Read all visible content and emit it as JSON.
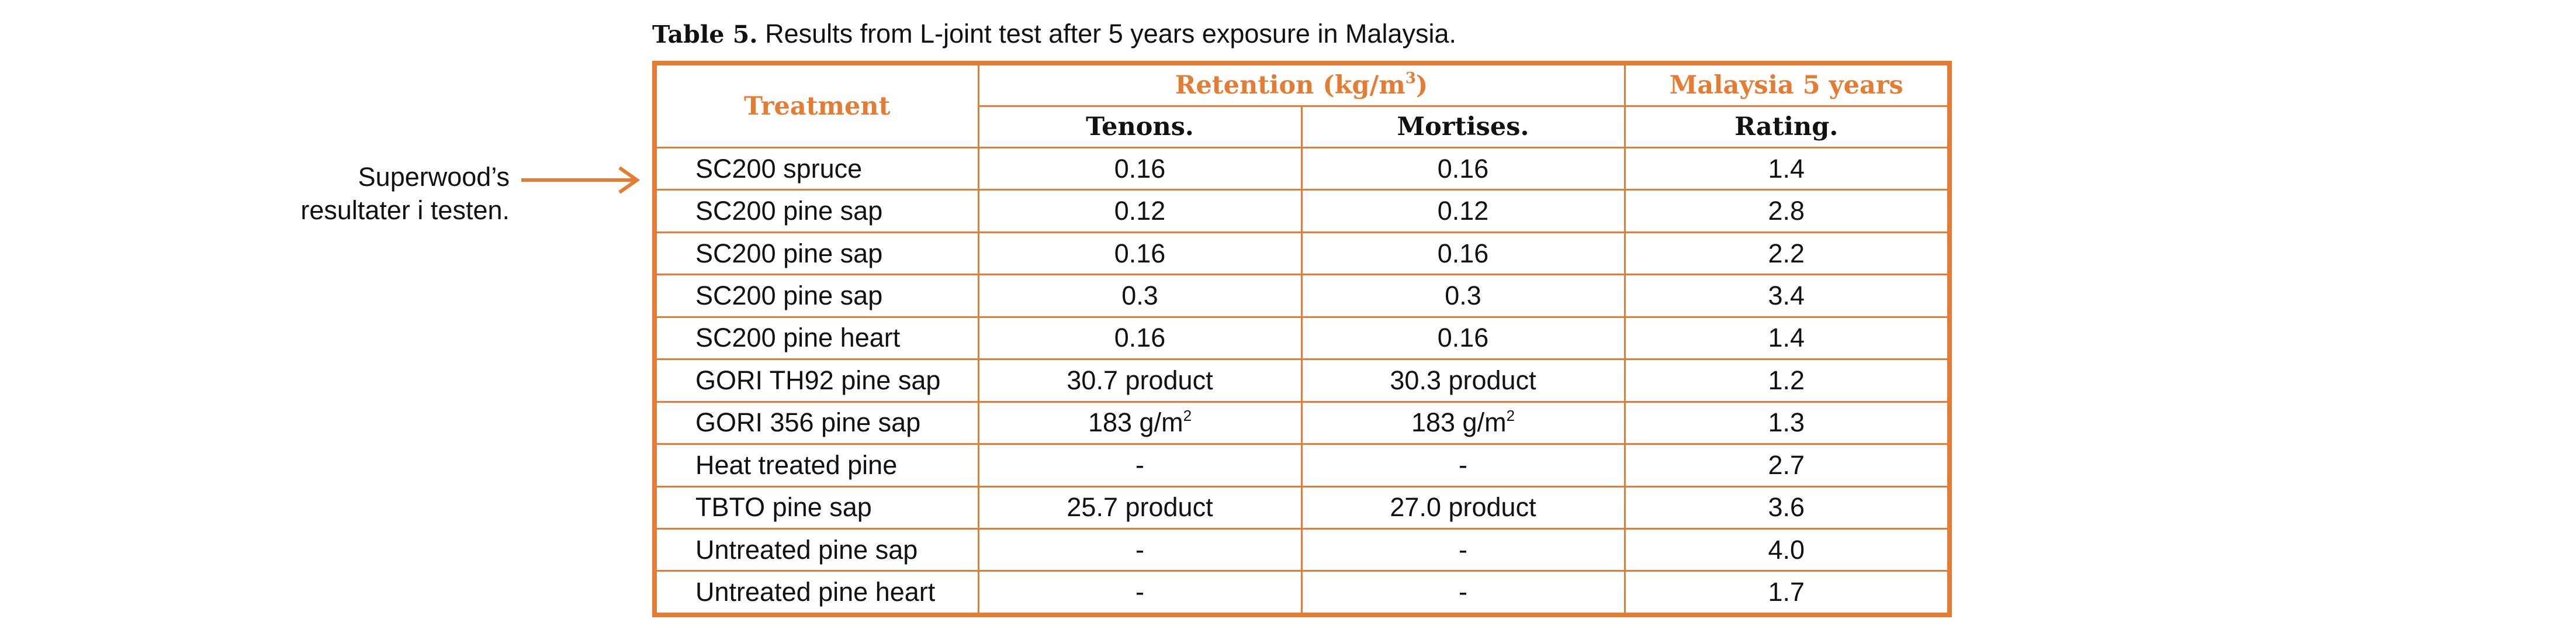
{
  "caption": {
    "label": "Table 5.",
    "text": " Results from L-joint test after 5 years exposure in Malaysia."
  },
  "annotation": {
    "line1": "Superwood’s",
    "line2": "resultater i testen."
  },
  "colors": {
    "accent": "#e47d33",
    "text": "#111111"
  },
  "table": {
    "treatment_header": "Treatment",
    "retention_header": "Retention (kg/m",
    "retention_sup": "3",
    "retention_tail": ")",
    "malaysia_header": "Malaysia 5 years",
    "tenons_header": "Tenons.",
    "mortises_header": "Mortises.",
    "rating_header": "Rating.",
    "rows": [
      {
        "treatment": "SC200 spruce",
        "tenons": "0.16",
        "mortises": "0.16",
        "rating": "1.4"
      },
      {
        "treatment": "SC200 pine sap",
        "tenons": "0.12",
        "mortises": "0.12",
        "rating": "2.8"
      },
      {
        "treatment": "SC200 pine sap",
        "tenons": "0.16",
        "mortises": "0.16",
        "rating": "2.2"
      },
      {
        "treatment": "SC200 pine sap",
        "tenons": "0.3",
        "mortises": "0.3",
        "rating": "3.4"
      },
      {
        "treatment": "SC200 pine heart",
        "tenons": "0.16",
        "mortises": "0.16",
        "rating": "1.4"
      },
      {
        "treatment": "GORI TH92 pine sap",
        "tenons": "30.7 product",
        "mortises": "30.3 product",
        "rating": "1.2"
      },
      {
        "treatment": "GORI 356 pine sap",
        "tenons": "183 g/m",
        "tenons_sup": "2",
        "mortises": "183 g/m",
        "mortises_sup": "2",
        "rating": "1.3"
      },
      {
        "treatment": "Heat treated pine",
        "tenons": "-",
        "mortises": "-",
        "rating": "2.7"
      },
      {
        "treatment": "TBTO pine sap",
        "tenons": "25.7 product",
        "mortises": "27.0 product",
        "rating": "3.6"
      },
      {
        "treatment": "Untreated pine sap",
        "tenons": "-",
        "mortises": "-",
        "rating": "4.0"
      },
      {
        "treatment": "Untreated pine heart",
        "tenons": "-",
        "mortises": "-",
        "rating": "1.7"
      }
    ]
  }
}
